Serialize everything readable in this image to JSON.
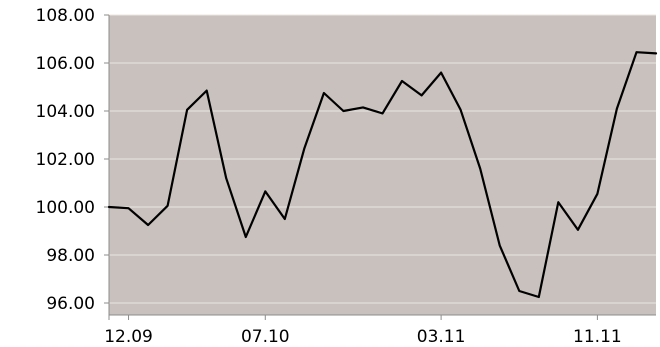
{
  "chart_data": {
    "type": "line",
    "title": "",
    "xlabel": "",
    "ylabel": "",
    "ylim": [
      95.5,
      108.0
    ],
    "y_ticks": [
      "108.00",
      "106.00",
      "104.00",
      "102.00",
      "100.00",
      "98.00",
      "96.00"
    ],
    "y_tick_values": [
      108,
      106,
      104,
      102,
      100,
      98,
      96
    ],
    "x_tick_labels": [
      {
        "label": "12.09",
        "index": 1
      },
      {
        "label": "07.10",
        "index": 8
      },
      {
        "label": "03.11",
        "index": 17
      },
      {
        "label": "11.11",
        "index": 25
      }
    ],
    "grid": true,
    "background_color": "#c8c1bd",
    "line_color": "#000000",
    "series": [
      {
        "values": [
          100.0,
          99.95,
          99.25,
          100.05,
          104.05,
          104.85,
          101.2,
          98.75,
          100.65,
          99.5,
          102.45,
          104.75,
          104.0,
          104.15,
          103.9,
          105.25,
          104.65,
          105.6,
          104.05,
          101.6,
          98.4,
          96.5,
          96.25,
          100.2,
          99.05,
          100.55,
          104.1,
          106.45,
          106.4
        ]
      }
    ]
  }
}
